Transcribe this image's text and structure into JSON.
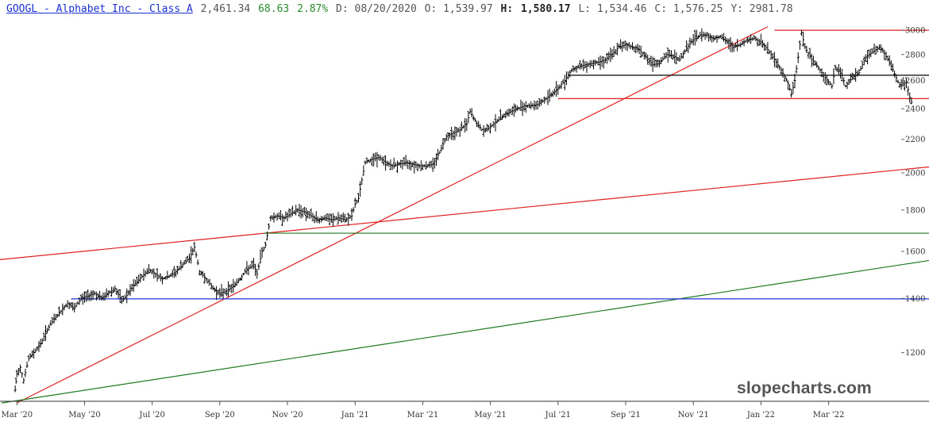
{
  "header": {
    "symbol": "GOOGL - Alphabet Inc - Class A",
    "last": "2,461.34",
    "change": "68.63",
    "change_pct": "2.87%",
    "date": "D: 08/20/2020",
    "open": "O: 1,539.97",
    "high_label": "H:",
    "high_value": "1,580.17",
    "low": "L: 1,534.46",
    "close": "C: 1,576.25",
    "y": "Y:  2981.78"
  },
  "watermark": "slopecharts.com",
  "colors": {
    "price": "#000000",
    "red_line": "#e02020",
    "green_line": "#1f7a1f",
    "blue_line": "#2233dd",
    "black_line": "#000000",
    "positive": "#2a8a2a",
    "symbol": "#1a2fd1"
  },
  "chart_data": {
    "type": "line",
    "scale": "log",
    "x_unit": "month",
    "xlim": [
      0,
      26.6
    ],
    "ylim": [
      1045,
      3035
    ],
    "y_ticks": [
      3000,
      2800,
      2600,
      2400,
      2200,
      2000,
      1800,
      1600,
      1400,
      1200
    ],
    "x_ticks": [
      {
        "label": "Mar '20",
        "x": 0.5
      },
      {
        "label": "May '20",
        "x": 2.5
      },
      {
        "label": "Jul '20",
        "x": 4.5
      },
      {
        "label": "Sep '20",
        "x": 6.5
      },
      {
        "label": "Nov '20",
        "x": 8.5
      },
      {
        "label": "Jan '21",
        "x": 10.5
      },
      {
        "label": "Mar '21",
        "x": 12.5
      },
      {
        "label": "May '21",
        "x": 14.5
      },
      {
        "label": "Jul '21",
        "x": 16.5
      },
      {
        "label": "Sep '21",
        "x": 18.5
      },
      {
        "label": "Nov '21",
        "x": 20.5
      },
      {
        "label": "Jan '22",
        "x": 22.5
      },
      {
        "label": "Mar '22",
        "x": 24.5
      }
    ],
    "grid": false,
    "series": [
      {
        "style": "ohlc-bars",
        "points": [
          [
            0.45,
            1080
          ],
          [
            0.5,
            1130
          ],
          [
            0.6,
            1150
          ],
          [
            0.7,
            1110
          ],
          [
            0.85,
            1180
          ],
          [
            1.0,
            1200
          ],
          [
            1.2,
            1230
          ],
          [
            1.4,
            1280
          ],
          [
            1.6,
            1320
          ],
          [
            1.8,
            1350
          ],
          [
            2.0,
            1380
          ],
          [
            2.2,
            1360
          ],
          [
            2.4,
            1400
          ],
          [
            2.6,
            1410
          ],
          [
            2.8,
            1420
          ],
          [
            3.0,
            1400
          ],
          [
            3.2,
            1420
          ],
          [
            3.4,
            1440
          ],
          [
            3.6,
            1390
          ],
          [
            3.8,
            1420
          ],
          [
            4.0,
            1460
          ],
          [
            4.2,
            1490
          ],
          [
            4.4,
            1520
          ],
          [
            4.6,
            1500
          ],
          [
            4.8,
            1480
          ],
          [
            5.0,
            1490
          ],
          [
            5.2,
            1510
          ],
          [
            5.4,
            1540
          ],
          [
            5.6,
            1570
          ],
          [
            5.75,
            1620
          ],
          [
            5.9,
            1510
          ],
          [
            6.1,
            1480
          ],
          [
            6.3,
            1440
          ],
          [
            6.5,
            1420
          ],
          [
            6.7,
            1430
          ],
          [
            6.9,
            1450
          ],
          [
            7.1,
            1480
          ],
          [
            7.3,
            1520
          ],
          [
            7.5,
            1540
          ],
          [
            7.6,
            1500
          ],
          [
            7.75,
            1600
          ],
          [
            7.85,
            1630
          ],
          [
            8.0,
            1760
          ],
          [
            8.2,
            1770
          ],
          [
            8.4,
            1760
          ],
          [
            8.6,
            1780
          ],
          [
            8.8,
            1800
          ],
          [
            9.0,
            1790
          ],
          [
            9.2,
            1770
          ],
          [
            9.4,
            1750
          ],
          [
            9.6,
            1760
          ],
          [
            9.8,
            1750
          ],
          [
            10.0,
            1760
          ],
          [
            10.2,
            1750
          ],
          [
            10.4,
            1770
          ],
          [
            10.5,
            1830
          ],
          [
            10.6,
            1860
          ],
          [
            10.8,
            2060
          ],
          [
            11.0,
            2080
          ],
          [
            11.2,
            2090
          ],
          [
            11.4,
            2060
          ],
          [
            11.6,
            2040
          ],
          [
            11.8,
            2050
          ],
          [
            12.0,
            2060
          ],
          [
            12.2,
            2050
          ],
          [
            12.4,
            2040
          ],
          [
            12.6,
            2040
          ],
          [
            12.8,
            2050
          ],
          [
            13.0,
            2120
          ],
          [
            13.2,
            2220
          ],
          [
            13.4,
            2240
          ],
          [
            13.6,
            2260
          ],
          [
            13.8,
            2300
          ],
          [
            13.9,
            2380
          ],
          [
            14.1,
            2300
          ],
          [
            14.3,
            2250
          ],
          [
            14.5,
            2280
          ],
          [
            14.7,
            2320
          ],
          [
            14.9,
            2360
          ],
          [
            15.1,
            2380
          ],
          [
            15.3,
            2400
          ],
          [
            15.5,
            2420
          ],
          [
            15.7,
            2420
          ],
          [
            15.9,
            2430
          ],
          [
            16.1,
            2460
          ],
          [
            16.3,
            2500
          ],
          [
            16.5,
            2540
          ],
          [
            16.7,
            2600
          ],
          [
            16.9,
            2680
          ],
          [
            17.1,
            2700
          ],
          [
            17.3,
            2720
          ],
          [
            17.5,
            2730
          ],
          [
            17.7,
            2740
          ],
          [
            17.9,
            2760
          ],
          [
            18.1,
            2800
          ],
          [
            18.3,
            2860
          ],
          [
            18.5,
            2880
          ],
          [
            18.7,
            2860
          ],
          [
            18.9,
            2840
          ],
          [
            19.1,
            2780
          ],
          [
            19.3,
            2720
          ],
          [
            19.5,
            2730
          ],
          [
            19.7,
            2800
          ],
          [
            19.9,
            2790
          ],
          [
            20.1,
            2760
          ],
          [
            20.3,
            2850
          ],
          [
            20.5,
            2920
          ],
          [
            20.7,
            2960
          ],
          [
            20.9,
            2960
          ],
          [
            21.1,
            2930
          ],
          [
            21.3,
            2950
          ],
          [
            21.5,
            2900
          ],
          [
            21.7,
            2860
          ],
          [
            21.9,
            2880
          ],
          [
            22.1,
            2920
          ],
          [
            22.3,
            2930
          ],
          [
            22.5,
            2900
          ],
          [
            22.7,
            2840
          ],
          [
            22.9,
            2760
          ],
          [
            23.1,
            2680
          ],
          [
            23.3,
            2580
          ],
          [
            23.4,
            2500
          ],
          [
            23.5,
            2600
          ],
          [
            23.6,
            2780
          ],
          [
            23.7,
            2980
          ],
          [
            23.8,
            2860
          ],
          [
            24.0,
            2760
          ],
          [
            24.2,
            2700
          ],
          [
            24.4,
            2620
          ],
          [
            24.6,
            2560
          ],
          [
            24.7,
            2700
          ],
          [
            24.9,
            2640
          ],
          [
            25.0,
            2560
          ],
          [
            25.2,
            2620
          ],
          [
            25.4,
            2660
          ],
          [
            25.6,
            2780
          ],
          [
            25.8,
            2820
          ],
          [
            26.0,
            2860
          ],
          [
            26.1,
            2830
          ],
          [
            26.3,
            2740
          ],
          [
            26.5,
            2620
          ],
          [
            26.6,
            2560
          ],
          [
            26.8,
            2590
          ],
          [
            26.9,
            2480
          ],
          [
            27.0,
            2410
          ]
        ]
      }
    ],
    "lines": [
      {
        "kind": "trend",
        "color": "red",
        "from": [
          0.5,
          1040
        ],
        "to": [
          22.7,
          3030
        ]
      },
      {
        "kind": "trend",
        "color": "red",
        "from": [
          -0.2,
          1560
        ],
        "to": [
          27.5,
          2035
        ]
      },
      {
        "kind": "trend",
        "color": "green",
        "from": [
          0.05,
          1040
        ],
        "to": [
          27.5,
          1560
        ]
      },
      {
        "kind": "horizontal",
        "color": "green",
        "value": 1685,
        "from_x": 7.8,
        "to_x": 27.5
      },
      {
        "kind": "horizontal",
        "color": "blue",
        "value": 1398,
        "from_x": 2.1,
        "to_x": 27.5
      },
      {
        "kind": "horizontal",
        "color": "black",
        "value": 2640,
        "from_x": 16.8,
        "to_x": 27.5
      },
      {
        "kind": "horizontal",
        "color": "red",
        "value": 2470,
        "from_x": 16.5,
        "to_x": 27.5
      },
      {
        "kind": "horizontal",
        "color": "red",
        "value": 3000,
        "from_x": 22.9,
        "to_x": 27.5
      }
    ]
  }
}
